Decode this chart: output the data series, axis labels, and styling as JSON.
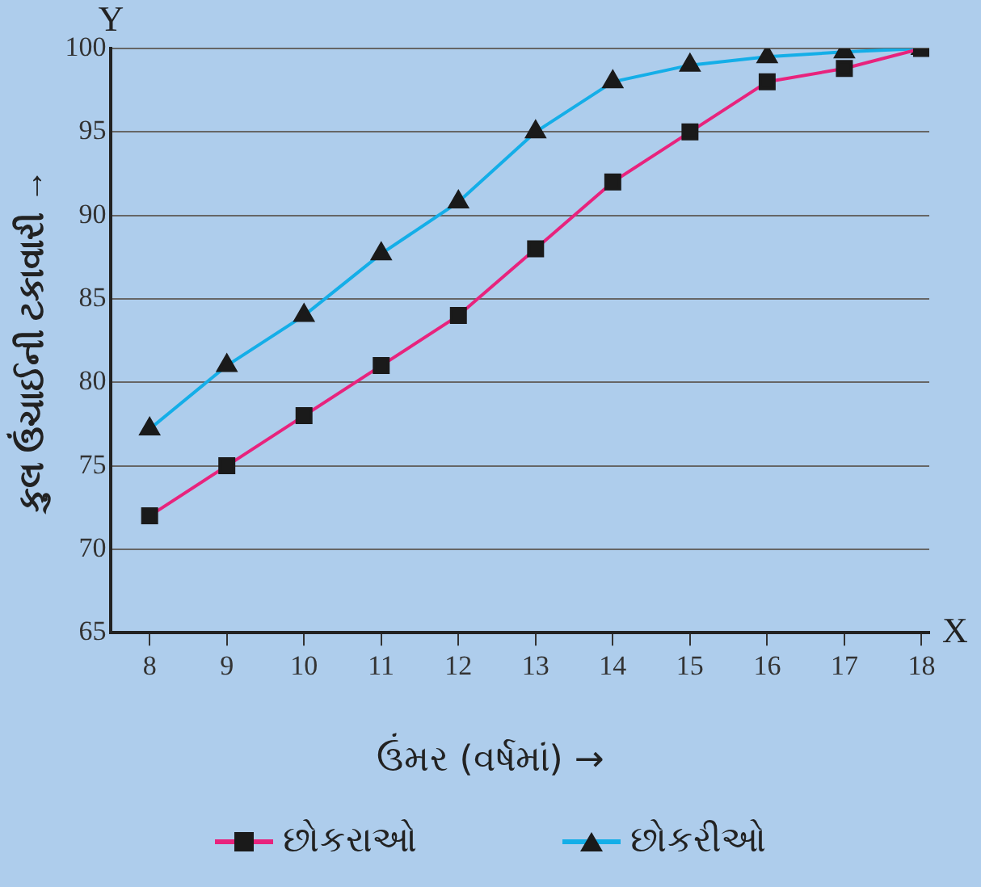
{
  "chart_data": {
    "type": "line",
    "xlabel": "ઉંમર (વર્ષમાં) →",
    "ylabel": "કુલ ઉંચાઈની ટકાવારી →",
    "annotations": [
      "Y",
      "X"
    ],
    "x": [
      8,
      9,
      10,
      11,
      12,
      13,
      14,
      15,
      16,
      17,
      18
    ],
    "series": [
      {
        "name": "છોકરાઓ",
        "color": "#e8237d",
        "marker": "square",
        "values": [
          72,
          75,
          78,
          81,
          84,
          88,
          92,
          95,
          98,
          98.8,
          100
        ]
      },
      {
        "name": "છોકરીઓ",
        "color": "#14aee8",
        "marker": "triangle",
        "values": [
          77.2,
          81,
          84,
          87.7,
          90.8,
          95,
          98,
          99,
          99.5,
          99.8,
          100
        ]
      }
    ],
    "xlim": [
      7.5,
      18.1
    ],
    "xticks": [
      8,
      9,
      10,
      11,
      12,
      13,
      14,
      15,
      16,
      17,
      18
    ],
    "ylim": [
      65,
      100
    ],
    "yticks": [
      65,
      70,
      75,
      80,
      85,
      90,
      95,
      100
    ],
    "grid": "y",
    "legend": "bottom"
  }
}
